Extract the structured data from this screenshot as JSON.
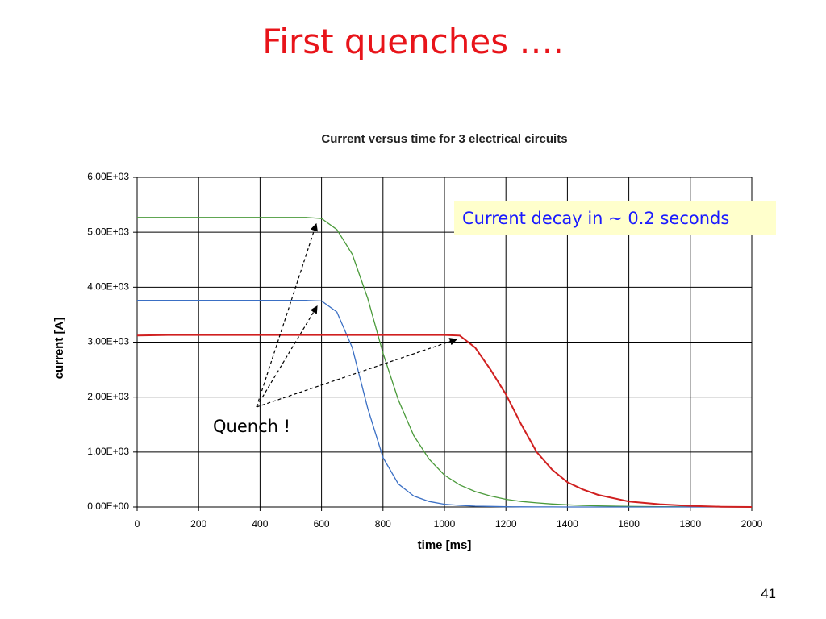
{
  "slide": {
    "title": "First quenches ….",
    "page_number": "41"
  },
  "chart_data": {
    "type": "line",
    "title": "Current versus time for 3 electrical circuits",
    "x_label": "time [ms]",
    "y_label": "current [A]",
    "annotations": [
      "Current decay in ~ 0.2 seconds",
      "Quench !"
    ],
    "x": [
      0,
      100,
      200,
      300,
      400,
      500,
      550,
      600,
      650,
      700,
      750,
      800,
      850,
      900,
      950,
      1000,
      1050,
      1100,
      1150,
      1200,
      1250,
      1300,
      1350,
      1400,
      1450,
      1500,
      1600,
      1700,
      1800,
      1900,
      2000
    ],
    "series": [
      {
        "color": "#4a9a3a",
        "values": [
          5270,
          5270,
          5270,
          5270,
          5270,
          5270,
          5270,
          5250,
          5050,
          4600,
          3800,
          2800,
          1950,
          1300,
          870,
          580,
          400,
          280,
          200,
          140,
          100,
          75,
          55,
          40,
          28,
          20,
          10,
          5,
          3,
          1,
          0
        ]
      },
      {
        "color": "#3a6fc4",
        "values": [
          3760,
          3760,
          3760,
          3760,
          3760,
          3760,
          3760,
          3750,
          3550,
          2900,
          1800,
          900,
          420,
          200,
          100,
          50,
          30,
          15,
          10,
          5,
          3,
          2,
          1,
          0,
          0,
          0,
          0,
          0,
          0,
          0,
          0
        ]
      },
      {
        "color": "#d02020",
        "values": [
          3120,
          3130,
          3130,
          3130,
          3130,
          3130,
          3130,
          3130,
          3130,
          3130,
          3130,
          3130,
          3130,
          3130,
          3130,
          3130,
          3120,
          2900,
          2500,
          2050,
          1500,
          1000,
          680,
          450,
          320,
          220,
          100,
          50,
          20,
          5,
          0
        ]
      }
    ],
    "xlim": [
      0,
      2000
    ],
    "ylim": [
      0,
      6000
    ],
    "xticks": [
      0,
      200,
      400,
      600,
      800,
      1000,
      1200,
      1400,
      1600,
      1800,
      2000
    ],
    "yticks": [
      {
        "value": 0,
        "label": "0.00E+00"
      },
      {
        "value": 1000,
        "label": "1.00E+03"
      },
      {
        "value": 2000,
        "label": "2.00E+03"
      },
      {
        "value": 3000,
        "label": "3.00E+03"
      },
      {
        "value": 4000,
        "label": "4.00E+03"
      },
      {
        "value": 5000,
        "label": "5.00E+03"
      },
      {
        "value": 6000,
        "label": "6.00E+03"
      }
    ],
    "grid": true
  }
}
